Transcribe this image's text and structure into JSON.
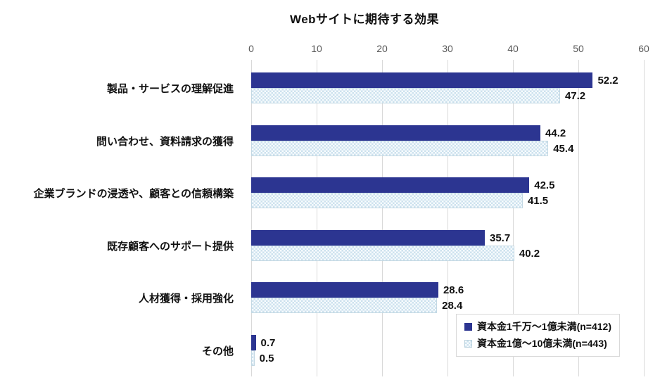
{
  "title": "Webサイトに期待する効果",
  "colors": {
    "series1": "#2c3591",
    "series2_fill": "#f6fbfd",
    "series2_pattern": "#cde2ee",
    "series2_border": "#c3d8e3",
    "gridline": "#d9d9d9",
    "axis_text": "#595959",
    "label_text": "#111111",
    "background": "#ffffff"
  },
  "chart_data": {
    "type": "bar",
    "orientation": "horizontal",
    "title": "Webサイトに期待する効果",
    "categories": [
      "製品・サービスの理解促進",
      "問い合わせ、資料請求の獲得",
      "企業ブランドの浸透や、顧客との信頼構築",
      "既存顧客へのサポート提供",
      "人材獲得・採用強化",
      "その他"
    ],
    "series": [
      {
        "name": "資本金1千万～1億未満(n=412)",
        "values": [
          52.2,
          44.2,
          42.5,
          35.7,
          28.6,
          0.7
        ]
      },
      {
        "name": "資本金1億～10億未満(n=443)",
        "values": [
          47.2,
          45.4,
          41.5,
          40.2,
          28.4,
          0.5
        ]
      }
    ],
    "xlim": [
      0,
      60
    ],
    "xticks": [
      0,
      10,
      20,
      30,
      40,
      50,
      60
    ],
    "grid": true,
    "axis_position": "top",
    "legend_position": "bottom-right",
    "value_labels": true
  }
}
